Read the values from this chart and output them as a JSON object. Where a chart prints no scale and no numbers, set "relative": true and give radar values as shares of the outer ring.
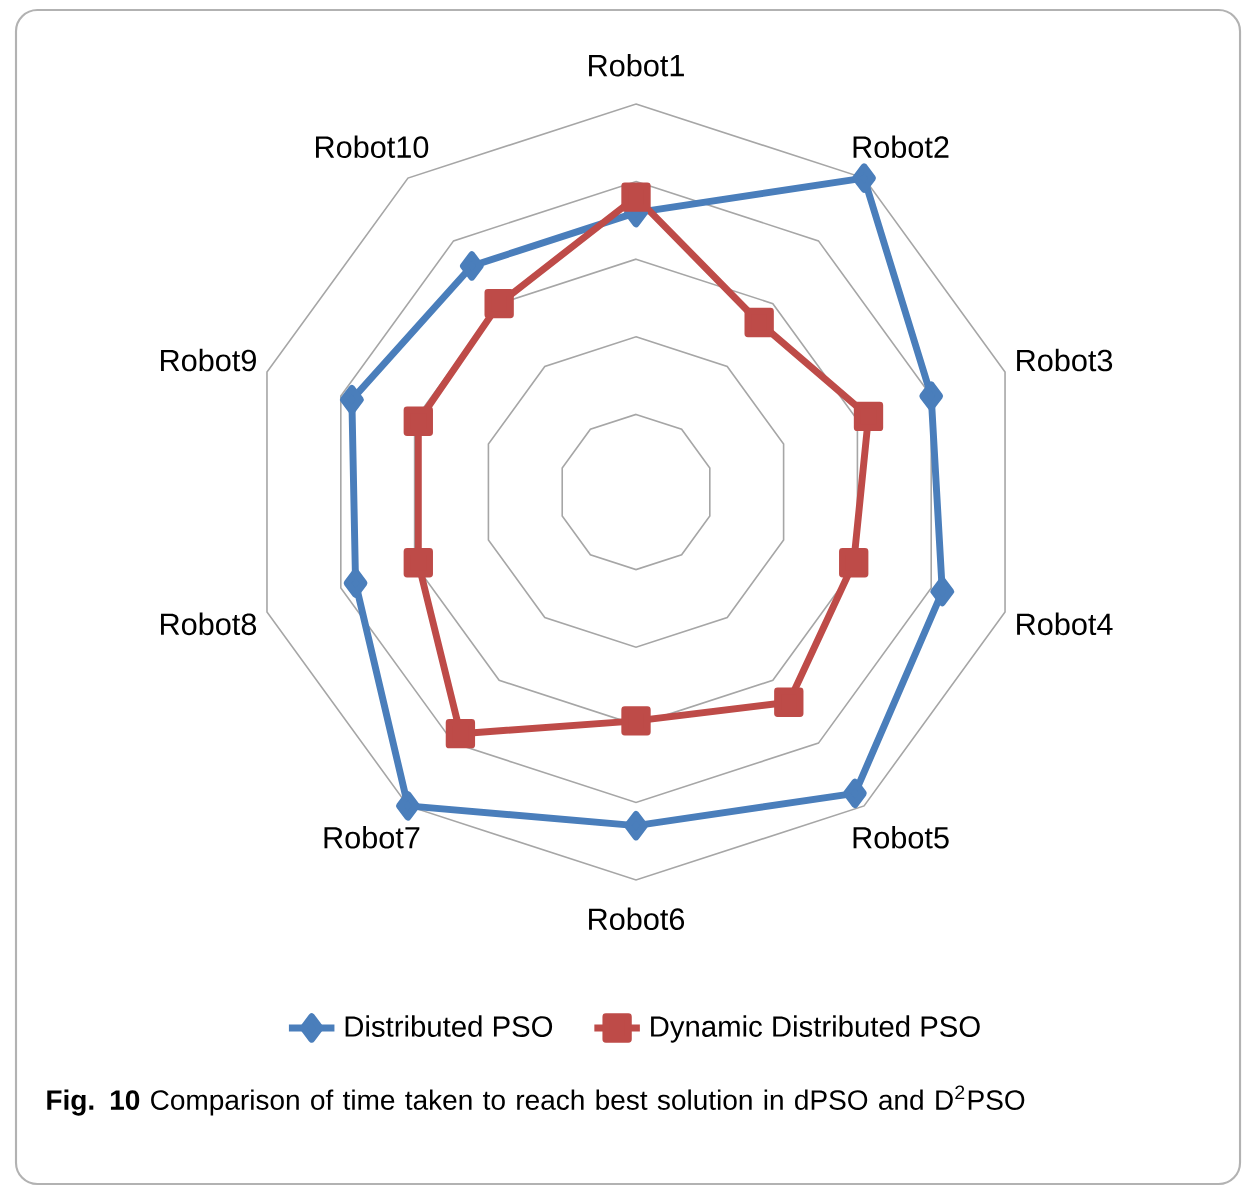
{
  "chart_data": {
    "type": "radar",
    "relative": true,
    "grid": true,
    "legend": "bottom",
    "categories": [
      "Robot1",
      "Robot2",
      "Robot3",
      "Robot4",
      "Robot5",
      "Robot6",
      "Robot7",
      "Robot8",
      "Robot9",
      "Robot10"
    ],
    "series": [
      {
        "name": "Distributed PSO",
        "color": "#4a7ebb",
        "marker": "diamond",
        "values": [
          0.72,
          1.0,
          0.8,
          0.83,
          0.96,
          0.86,
          1.0,
          0.76,
          0.77,
          0.72
        ]
      },
      {
        "name": "Dynamic Distributed PSO",
        "color": "#be4b48",
        "marker": "square",
        "values": [
          0.76,
          0.54,
          0.63,
          0.59,
          0.67,
          0.59,
          0.77,
          0.59,
          0.59,
          0.6
        ]
      }
    ],
    "annotations": [
      "**Fig. 10** Comparison of time taken to reach best solution in dPSO and D$^{2}$PSO"
    ]
  }
}
